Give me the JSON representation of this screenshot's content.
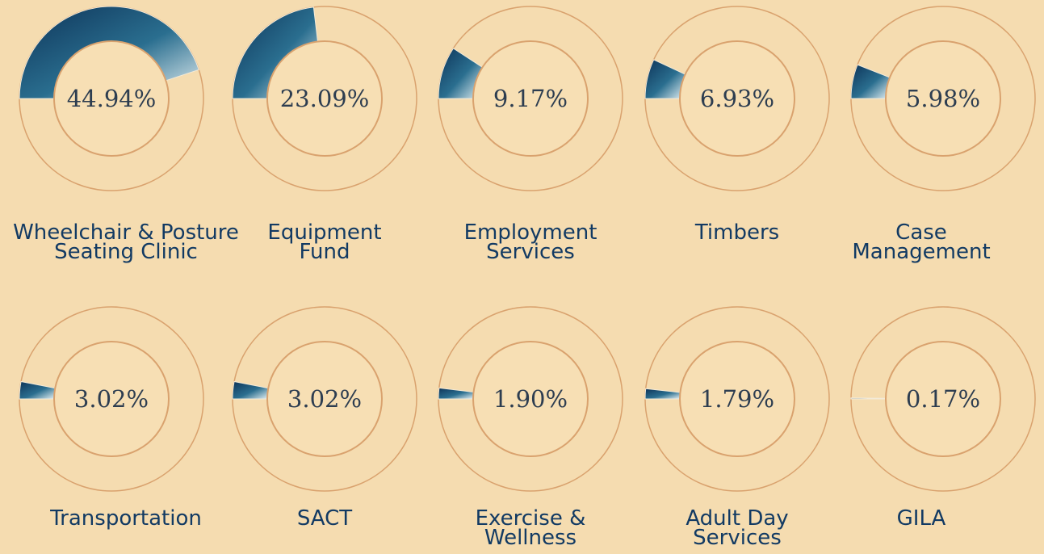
{
  "chart_data": {
    "type": "donut",
    "categories": [
      "Wheelchair & Posture\nSeating Clinic",
      "Equipment\nFund",
      "Employment\nServices",
      "Timbers",
      "Case\nManagement",
      "Transportation",
      "SACT",
      "Exercise &\nWellness",
      "Adult Day\nServices",
      "GILA"
    ],
    "values": [
      44.94,
      23.09,
      9.17,
      6.93,
      5.98,
      3.02,
      3.02,
      1.9,
      1.79,
      0.17
    ],
    "value_labels": [
      "44.94%",
      "23.09%",
      "9.17%",
      "6.93%",
      "5.98%",
      "3.02%",
      "3.02%",
      "1.90%",
      "1.79%",
      "0.17%"
    ],
    "color": "#0d3358"
  }
}
